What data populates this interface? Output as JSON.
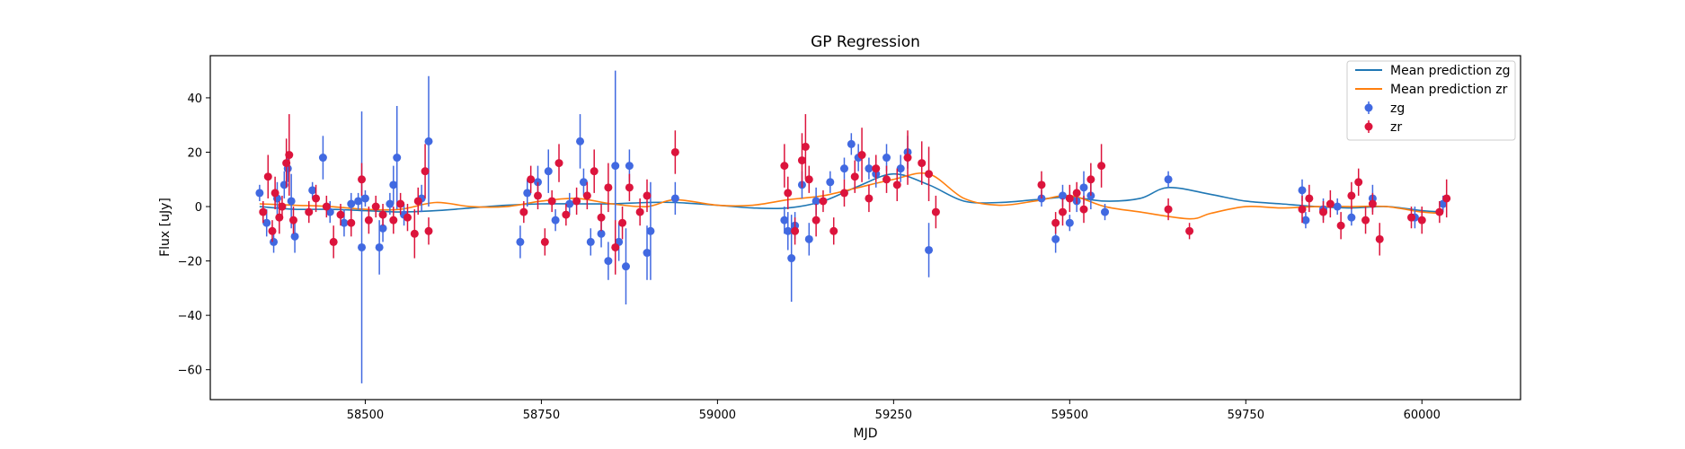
{
  "chart_data": {
    "type": "scatter",
    "title": "GP Regression",
    "xlabel": "MJD",
    "ylabel": "Flux [uJy]",
    "xlim": [
      58280,
      60140
    ],
    "ylim": [
      -71,
      55.5
    ],
    "xticks": [
      58500,
      58750,
      59000,
      59250,
      59500,
      59750,
      60000
    ],
    "yticks": [
      -60,
      -40,
      -20,
      0,
      20,
      40
    ],
    "grid": false,
    "legend_position": "top-right",
    "colors": {
      "zg_line": "#1f77b4",
      "zr_line": "#ff7f0e",
      "zg_points": "#4169e1",
      "zr_points": "#dc143c"
    },
    "series": [
      {
        "name": "Mean prediction zg",
        "kind": "line",
        "x": [
          58350,
          58400,
          58450,
          58500,
          58550,
          58600,
          58650,
          58700,
          58750,
          58800,
          58850,
          58900,
          58940,
          59000,
          59050,
          59100,
          59150,
          59200,
          59250,
          59300,
          59350,
          59400,
          59450,
          59500,
          59550,
          59600,
          59640,
          59700,
          59750,
          59800,
          59850,
          59900,
          59950,
          60000,
          60030
        ],
        "y": [
          0.0,
          -1.0,
          -1.0,
          -1.5,
          -2.0,
          -1.5,
          -0.5,
          0.5,
          1.0,
          1.0,
          1.0,
          1.5,
          1.5,
          0.5,
          -0.5,
          -0.5,
          2.0,
          7.5,
          12.0,
          8.0,
          2.0,
          1.5,
          2.5,
          3.5,
          2.0,
          3.0,
          7.0,
          4.5,
          2.0,
          1.0,
          0.0,
          -0.5,
          0.0,
          -1.5,
          -2.0
        ]
      },
      {
        "name": "Mean prediction zr",
        "kind": "line",
        "x": [
          58350,
          58400,
          58450,
          58500,
          58550,
          58600,
          58650,
          58700,
          58750,
          58800,
          58850,
          58900,
          58940,
          59000,
          59050,
          59100,
          59150,
          59200,
          59250,
          59300,
          59350,
          59400,
          59450,
          59500,
          59550,
          59600,
          59670,
          59700,
          59750,
          59800,
          59850,
          59900,
          59950,
          60000,
          60030
        ],
        "y": [
          1.0,
          0.5,
          0.0,
          -1.0,
          -1.0,
          1.5,
          0.0,
          0.0,
          2.0,
          3.0,
          1.0,
          0.0,
          2.5,
          0.5,
          0.5,
          2.5,
          4.0,
          7.0,
          10.0,
          12.0,
          3.0,
          0.5,
          2.0,
          4.0,
          0.0,
          -2.0,
          -4.5,
          -2.5,
          0.0,
          -0.5,
          0.0,
          0.0,
          0.0,
          -2.0,
          -2.5
        ]
      },
      {
        "name": "zg",
        "kind": "errorbar",
        "points": [
          [
            58350,
            5,
            3
          ],
          [
            58360,
            -6,
            5
          ],
          [
            58370,
            -13,
            4
          ],
          [
            58375,
            3,
            6
          ],
          [
            58385,
            8,
            5
          ],
          [
            58390,
            14,
            5
          ],
          [
            58395,
            2,
            10
          ],
          [
            58400,
            -11,
            6
          ],
          [
            58425,
            6,
            3
          ],
          [
            58440,
            18,
            8
          ],
          [
            58450,
            -2,
            4
          ],
          [
            58470,
            -6,
            5
          ],
          [
            58480,
            1,
            4
          ],
          [
            58490,
            2,
            3
          ],
          [
            58495,
            -15,
            50
          ],
          [
            58500,
            3,
            3
          ],
          [
            58520,
            -15,
            10
          ],
          [
            58525,
            -8,
            5
          ],
          [
            58535,
            1,
            4
          ],
          [
            58540,
            8,
            7
          ],
          [
            58545,
            18,
            19
          ],
          [
            58555,
            -3,
            4
          ],
          [
            58580,
            3,
            5
          ],
          [
            58590,
            24,
            24
          ],
          [
            58720,
            -13,
            6
          ],
          [
            58730,
            5,
            5
          ],
          [
            58745,
            9,
            6
          ],
          [
            58760,
            13,
            8
          ],
          [
            58770,
            -5,
            4
          ],
          [
            58790,
            1,
            4
          ],
          [
            58805,
            24,
            10
          ],
          [
            58810,
            9,
            5
          ],
          [
            58820,
            -13,
            5
          ],
          [
            58835,
            -10,
            5
          ],
          [
            58845,
            -20,
            7
          ],
          [
            58855,
            15,
            35
          ],
          [
            58860,
            -13,
            7
          ],
          [
            58870,
            -22,
            14
          ],
          [
            58875,
            15,
            6
          ],
          [
            58900,
            -17,
            10
          ],
          [
            58905,
            -9,
            18
          ],
          [
            58940,
            3,
            6
          ],
          [
            59095,
            -5,
            5
          ],
          [
            59100,
            -9,
            7
          ],
          [
            59105,
            -19,
            16
          ],
          [
            59110,
            -7,
            5
          ],
          [
            59120,
            8,
            5
          ],
          [
            59130,
            -12,
            6
          ],
          [
            59140,
            2,
            5
          ],
          [
            59160,
            9,
            4
          ],
          [
            59180,
            14,
            4
          ],
          [
            59190,
            23,
            4
          ],
          [
            59200,
            18,
            5
          ],
          [
            59215,
            14,
            4
          ],
          [
            59225,
            12,
            5
          ],
          [
            59240,
            18,
            5
          ],
          [
            59260,
            14,
            5
          ],
          [
            59270,
            20,
            6
          ],
          [
            59300,
            -16,
            10
          ],
          [
            59460,
            3,
            3
          ],
          [
            59480,
            -12,
            5
          ],
          [
            59490,
            4,
            4
          ],
          [
            59500,
            -6,
            3
          ],
          [
            59510,
            2,
            4
          ],
          [
            59520,
            7,
            6
          ],
          [
            59530,
            4,
            5
          ],
          [
            59550,
            -2,
            3
          ],
          [
            59640,
            10,
            3
          ],
          [
            59830,
            6,
            4
          ],
          [
            59835,
            -5,
            3
          ],
          [
            59860,
            -1,
            4
          ],
          [
            59880,
            0,
            3
          ],
          [
            59900,
            -4,
            3
          ],
          [
            59930,
            3,
            5
          ],
          [
            59990,
            -4,
            4
          ],
          [
            60030,
            1,
            3
          ]
        ]
      },
      {
        "name": "zr",
        "kind": "errorbar",
        "points": [
          [
            58355,
            -2,
            4
          ],
          [
            58362,
            11,
            8
          ],
          [
            58368,
            -9,
            4
          ],
          [
            58372,
            5,
            6
          ],
          [
            58378,
            -4,
            6
          ],
          [
            58382,
            0,
            4
          ],
          [
            58388,
            16,
            9
          ],
          [
            58392,
            19,
            15
          ],
          [
            58398,
            -5,
            5
          ],
          [
            58420,
            -2,
            4
          ],
          [
            58430,
            3,
            5
          ],
          [
            58445,
            0,
            4
          ],
          [
            58455,
            -13,
            6
          ],
          [
            58465,
            -3,
            4
          ],
          [
            58480,
            -6,
            5
          ],
          [
            58495,
            10,
            6
          ],
          [
            58505,
            -5,
            5
          ],
          [
            58515,
            0,
            4
          ],
          [
            58525,
            -3,
            4
          ],
          [
            58540,
            -5,
            5
          ],
          [
            58550,
            1,
            4
          ],
          [
            58560,
            -4,
            5
          ],
          [
            58570,
            -10,
            9
          ],
          [
            58575,
            2,
            5
          ],
          [
            58585,
            13,
            10
          ],
          [
            58590,
            -9,
            5
          ],
          [
            58725,
            -2,
            4
          ],
          [
            58735,
            10,
            5
          ],
          [
            58745,
            4,
            5
          ],
          [
            58755,
            -13,
            5
          ],
          [
            58765,
            2,
            4
          ],
          [
            58775,
            16,
            7
          ],
          [
            58785,
            -3,
            4
          ],
          [
            58800,
            2,
            5
          ],
          [
            58815,
            4,
            5
          ],
          [
            58825,
            13,
            8
          ],
          [
            58835,
            -4,
            5
          ],
          [
            58845,
            7,
            9
          ],
          [
            58855,
            -15,
            10
          ],
          [
            58865,
            -6,
            6
          ],
          [
            58875,
            7,
            5
          ],
          [
            58890,
            -2,
            5
          ],
          [
            58900,
            4,
            6
          ],
          [
            58940,
            20,
            8
          ],
          [
            59095,
            15,
            8
          ],
          [
            59100,
            5,
            6
          ],
          [
            59110,
            -9,
            5
          ],
          [
            59120,
            17,
            10
          ],
          [
            59125,
            22,
            12
          ],
          [
            59130,
            10,
            5
          ],
          [
            59140,
            -5,
            6
          ],
          [
            59150,
            2,
            4
          ],
          [
            59165,
            -9,
            5
          ],
          [
            59180,
            5,
            5
          ],
          [
            59195,
            11,
            6
          ],
          [
            59205,
            19,
            10
          ],
          [
            59215,
            3,
            5
          ],
          [
            59225,
            14,
            5
          ],
          [
            59240,
            10,
            5
          ],
          [
            59255,
            8,
            6
          ],
          [
            59270,
            18,
            10
          ],
          [
            59290,
            16,
            8
          ],
          [
            59300,
            12,
            10
          ],
          [
            59310,
            -2,
            6
          ],
          [
            59460,
            8,
            5
          ],
          [
            59480,
            -6,
            4
          ],
          [
            59490,
            -2,
            5
          ],
          [
            59500,
            3,
            5
          ],
          [
            59510,
            5,
            4
          ],
          [
            59520,
            -1,
            5
          ],
          [
            59530,
            10,
            6
          ],
          [
            59545,
            15,
            8
          ],
          [
            59640,
            -1,
            4
          ],
          [
            59670,
            -9,
            3
          ],
          [
            59830,
            -1,
            5
          ],
          [
            59840,
            3,
            5
          ],
          [
            59860,
            -2,
            4
          ],
          [
            59870,
            1,
            5
          ],
          [
            59885,
            -7,
            5
          ],
          [
            59900,
            4,
            5
          ],
          [
            59910,
            9,
            5
          ],
          [
            59920,
            -5,
            5
          ],
          [
            59930,
            1,
            4
          ],
          [
            59940,
            -12,
            6
          ],
          [
            59985,
            -4,
            4
          ],
          [
            60000,
            -5,
            5
          ],
          [
            60025,
            -2,
            4
          ],
          [
            60035,
            3,
            7
          ]
        ]
      }
    ]
  }
}
